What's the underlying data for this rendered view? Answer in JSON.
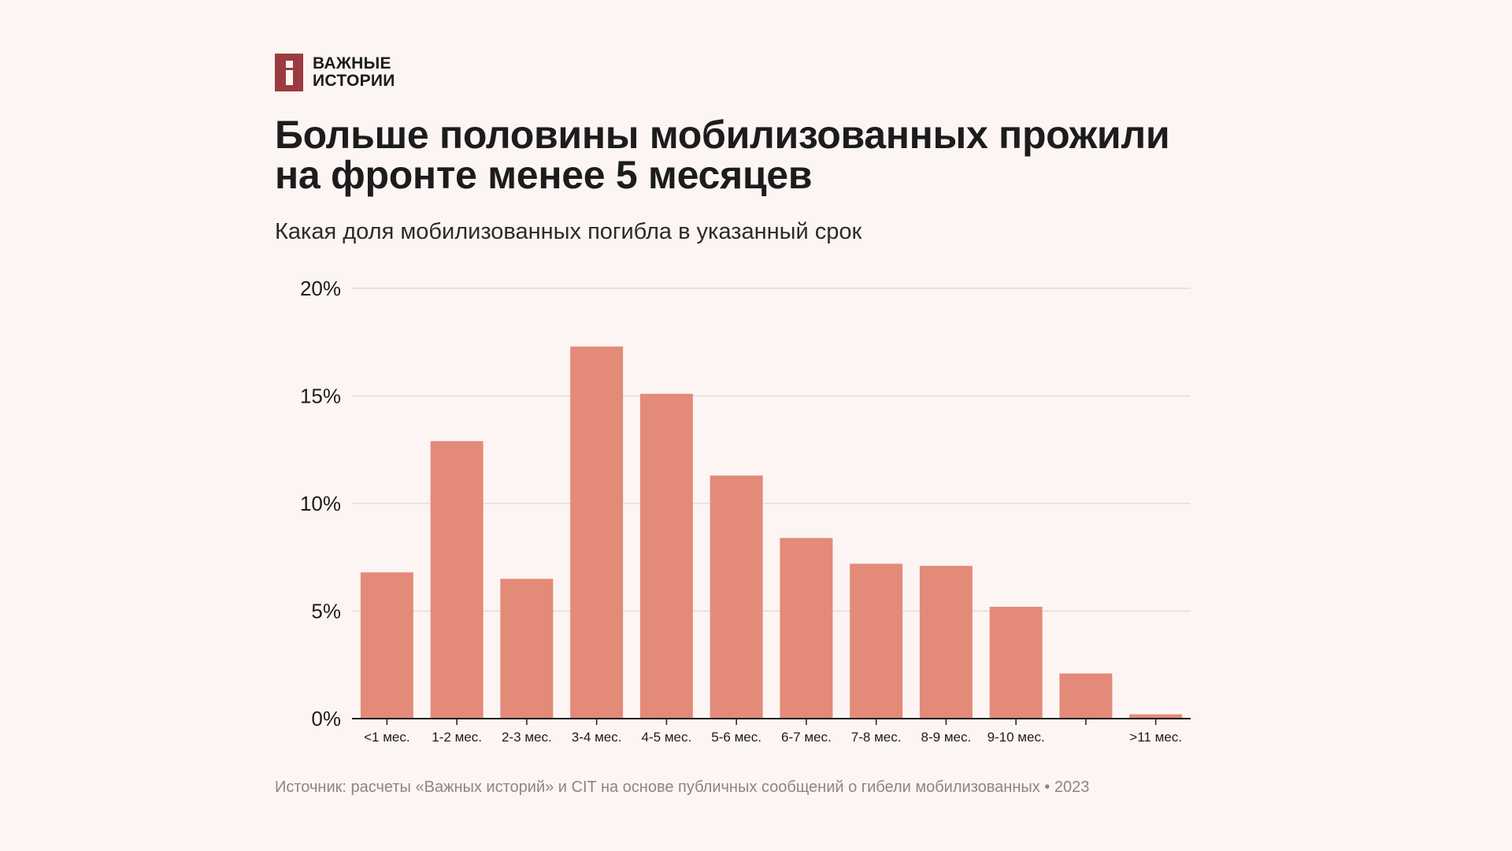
{
  "brand": {
    "line1": "ВАЖНЫЕ",
    "line2": "ИСТОРИИ",
    "color": "#9b3b41"
  },
  "title": {
    "line1": "Больше половины мобилизованных прожили",
    "line2": "на фронте менее 5 месяцев"
  },
  "subtitle": "Какая доля мобилизованных погибла в указанный срок",
  "source": "Источник: расчеты «Важных историй» и CIT на основе публичных сообщений о гибели мобилизованных • 2023",
  "chart_data": {
    "type": "bar",
    "title": "Больше половины мобилизованных прожили на фронте менее 5 месяцев",
    "subtitle": "Какая доля мобилизованных погибла в указанный срок",
    "xlabel": "",
    "ylabel": "",
    "unit": "%",
    "ylim": [
      0,
      20
    ],
    "yticks": [
      0,
      5,
      10,
      15,
      20
    ],
    "ytick_labels": [
      "0%",
      "5%",
      "10%",
      "15%",
      "20%"
    ],
    "grid": true,
    "bar_color": "#e48a79",
    "categories": [
      "<1 мес.",
      "1-2 мес.",
      "2-3 мес.",
      "3-4 мес.",
      "4-5 мес.",
      "5-6 мес.",
      "6-7 мес.",
      "7-8 мес.",
      "8-9 мес.",
      "9-10 мес.",
      "",
      ">11 мес."
    ],
    "values": [
      6.8,
      12.9,
      6.5,
      17.3,
      15.1,
      11.3,
      8.4,
      7.2,
      7.1,
      5.2,
      2.1,
      0.2
    ]
  }
}
